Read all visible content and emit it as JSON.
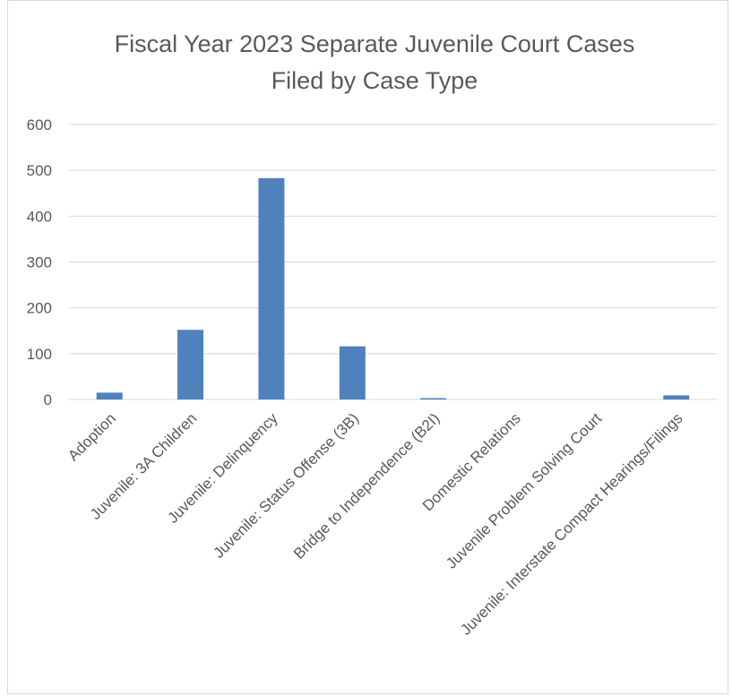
{
  "chart_data": {
    "type": "bar",
    "title_lines": [
      "Fiscal Year 2023 Separate Juvenile Court Cases",
      "Filed by Case Type"
    ],
    "categories": [
      "Adoption",
      "Juvenile: 3A Children",
      "Juvenile: Delinquency",
      "Juvenile: Status Offense (3B)",
      "Bridge to Independence (B2I)",
      "Domestic Relations",
      "Juvenile Problem Solving Court",
      "Juvenile: Interstate Compact Hearings/Filings"
    ],
    "values": [
      15,
      152,
      483,
      116,
      3,
      0,
      0,
      9
    ],
    "ylim": [
      0,
      600
    ],
    "yticks": [
      "0",
      "100",
      "200",
      "300",
      "400",
      "500",
      "600"
    ],
    "grid": true,
    "legend": "none",
    "bar_color": "#4f81bd"
  }
}
